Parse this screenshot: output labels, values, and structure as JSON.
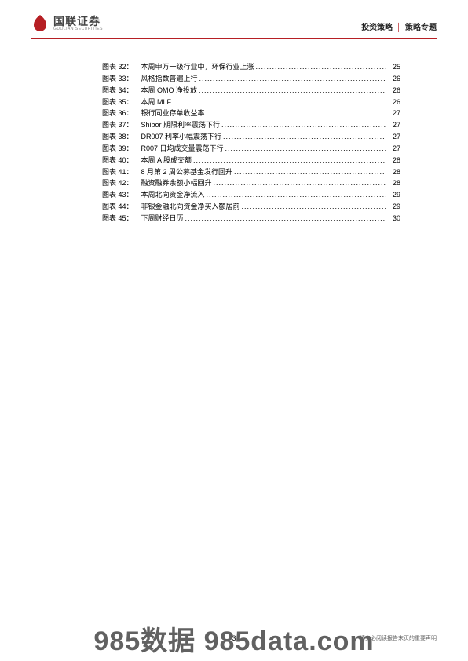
{
  "header": {
    "company_cn": "国联证券",
    "company_en": "GUOLIAN SECURITIES",
    "right_left": "投资策略",
    "right_right": "策略专题",
    "logo_color": "#b61f24",
    "rule_color": "#b61f24"
  },
  "toc": {
    "prefix": "图表",
    "items": [
      {
        "n": "32",
        "title": "本周申万一级行业中，环保行业上涨",
        "page": "25"
      },
      {
        "n": "33",
        "title": "风格指数普遍上行",
        "page": "26"
      },
      {
        "n": "34",
        "title": "本周 OMO 净投放",
        "page": "26"
      },
      {
        "n": "35",
        "title": "本周 MLF",
        "page": "26"
      },
      {
        "n": "36",
        "title": "银行同业存单收益率",
        "page": "27"
      },
      {
        "n": "37",
        "title": "Shibor 期限利率震荡下行",
        "page": "27"
      },
      {
        "n": "38",
        "title": "DR007 利率小幅震荡下行",
        "page": "27"
      },
      {
        "n": "39",
        "title": "R007 日均成交量震荡下行",
        "page": "27"
      },
      {
        "n": "40",
        "title": "本周 A 股成交额",
        "page": "28"
      },
      {
        "n": "41",
        "title": "8 月第 2 周公募基金发行回升",
        "page": "28"
      },
      {
        "n": "42",
        "title": "融资融券余额小幅回升",
        "page": "28"
      },
      {
        "n": "43",
        "title": "本周北向资金净流入",
        "page": "29"
      },
      {
        "n": "44",
        "title": "非银金融北向资金净买入额居前",
        "page": "29"
      },
      {
        "n": "45",
        "title": "下周财经日历",
        "page": "30"
      }
    ]
  },
  "footer": {
    "page_number": "3",
    "disclaimer": "请务必阅读报告末页的重要声明"
  },
  "watermark": "985数据 985data.com"
}
